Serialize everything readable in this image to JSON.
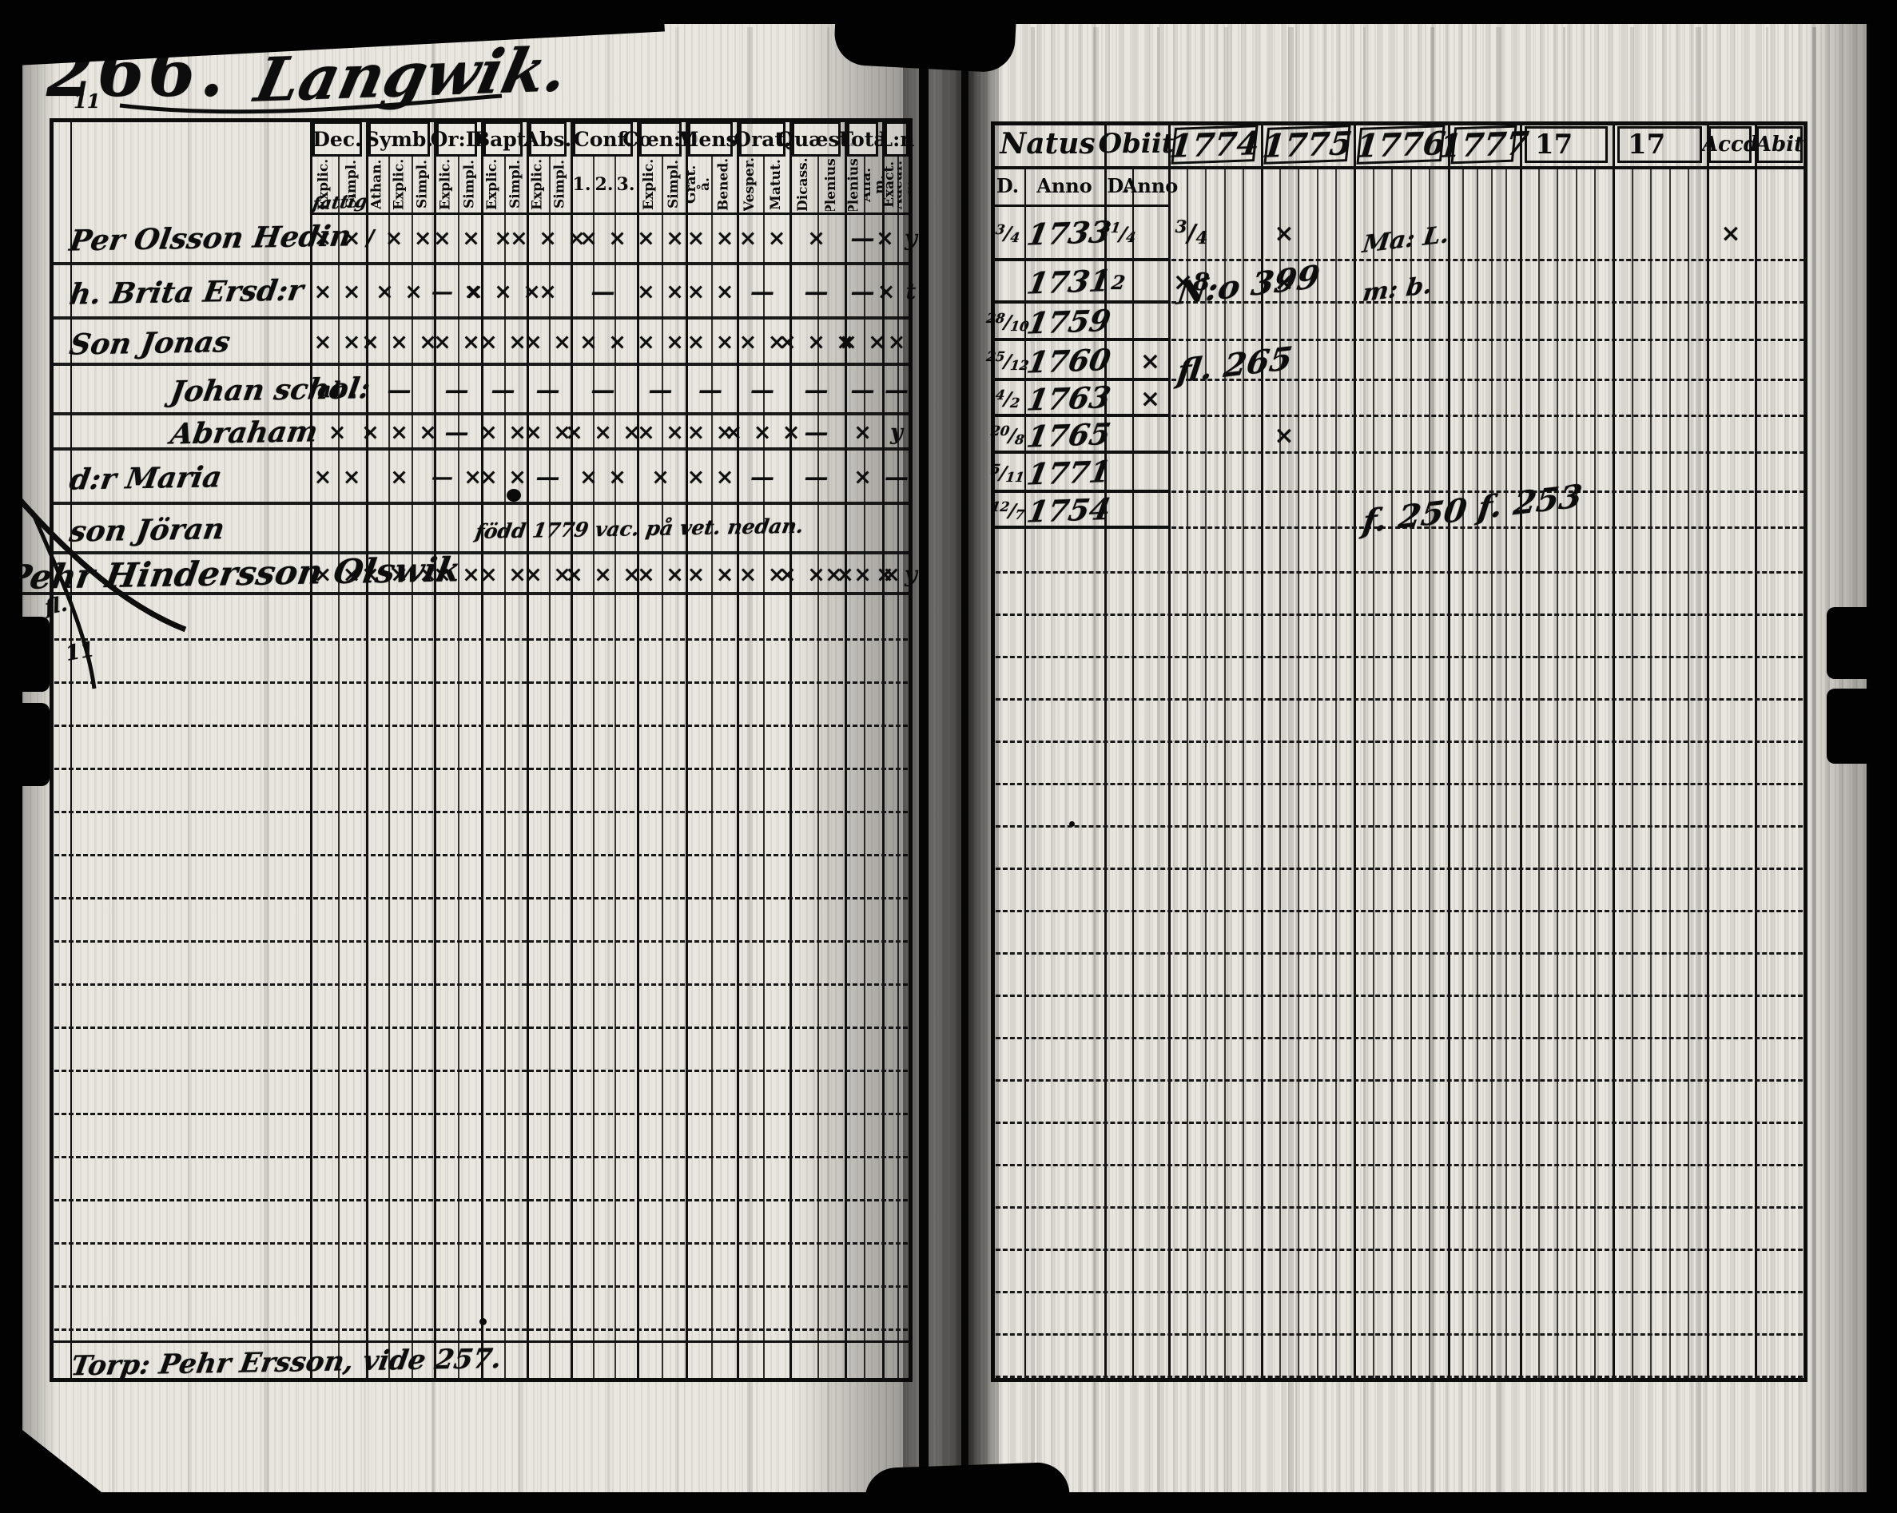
{
  "page_label": {
    "number": "266.",
    "place": "Langwik."
  },
  "left_table": {
    "columns": [
      {
        "label": "Dec.",
        "subs": [
          "Explic.",
          "Simpl."
        ]
      },
      {
        "label": "Symb.",
        "subs": [
          "Athan.",
          "Explic.",
          "Simpl."
        ]
      },
      {
        "label": "Or:D",
        "subs": [
          "Explic.",
          "Simpl."
        ]
      },
      {
        "label": "Bapt.",
        "subs": [
          "Explic.",
          "Simpl."
        ]
      },
      {
        "label": "Abs.",
        "subs": [
          "Explic.",
          "Simpl."
        ]
      },
      {
        "label": "Conf.",
        "subs": [
          "1.",
          "2.",
          "3."
        ]
      },
      {
        "label": "Cœn:D",
        "subs": [
          "Explic.",
          "Simpl."
        ]
      },
      {
        "label": "Mens.",
        "subs": [
          "Grat. å.",
          "Bened."
        ]
      },
      {
        "label": "Orat.",
        "subs": [
          "Vesper.",
          "Matut."
        ]
      },
      {
        "label": "Quæst.",
        "subs": [
          "Dicass.",
          "Plenius."
        ]
      },
      {
        "label": "Tota",
        "subs": [
          "Plenius.",
          "Alia. m."
        ]
      },
      {
        "label": "L:n",
        "subs": [
          "Exact.",
          "Adcur. m."
        ]
      }
    ],
    "rows": [
      {
        "name": "Per Olsson Hedin",
        "annotation": "fattig",
        "indent": false,
        "marks": [
          "× ×",
          "/ × ×",
          "× ×",
          "×",
          "× × ×",
          "× ×",
          "× ×",
          "× ×",
          "× ×",
          "×",
          "—",
          "× y"
        ]
      },
      {
        "name": "h. Brita Ersd:r",
        "indent": false,
        "marks": [
          "× ×",
          "× ×",
          "— ×",
          "× × ×",
          "×",
          "—",
          "× ×",
          "× ×",
          "—",
          "—",
          "—",
          "× t"
        ]
      },
      {
        "name": "Son Jonas",
        "indent": false,
        "marks": [
          "× ×",
          "× × ×",
          "× ×",
          "× ×",
          "× ×",
          "× ×",
          "× ×",
          "× ×",
          "× ×",
          "× × ×",
          "× ×",
          "×"
        ]
      },
      {
        "name": "Johan schol:",
        "indent": true,
        "marks": [
          "ab.",
          "—",
          "—",
          "—",
          "—",
          "—",
          "—",
          "—",
          "—",
          "—",
          "—",
          "—"
        ]
      },
      {
        "name": "Abraham",
        "indent": true,
        "marks": [
          "×",
          "× × ×",
          "—",
          "× ×",
          "× ×",
          "× × ×",
          "× ×",
          "× ×",
          "× × ×",
          "—",
          "×",
          "y"
        ]
      },
      {
        "name": "d:r Maria",
        "indent": false,
        "marks": [
          "× ×",
          "×",
          "— ×",
          "× ×",
          "—",
          "× ×",
          "×",
          "× ×",
          "—",
          "—",
          "×",
          "—"
        ]
      },
      {
        "name": "son Jöran",
        "indent": false,
        "note": "född 1779 vac. på vet. nedan.",
        "marks": []
      },
      {
        "name": "Pehr Hindersson Olswik",
        "indent": false,
        "marks": [
          "× ×",
          "× × ×",
          "× ×",
          "× ×",
          "× ×",
          "× × ×",
          "× ×",
          "× ×",
          "× ×",
          "× × ×",
          "× × ×",
          "× y"
        ]
      }
    ],
    "footer_note": "Torp: Pehr Ersson, vide 257.",
    "marginalia_top": "11",
    "marginalia_mid": [
      "fl.",
      "11"
    ]
  },
  "right_table": {
    "natus_label": "Natus",
    "obiit_label": "Obiit",
    "day_label": "D.",
    "anno_label": "Anno",
    "year_columns": [
      "1774",
      "1775",
      "1776",
      "1777",
      "17",
      "17"
    ],
    "accd_label": "Accd",
    "abit_label": "Abit",
    "rows": [
      {
        "natus_d": "3/4",
        "natus_anno": "1733",
        "obiit_d": "31/4",
        "obiit_anno": "",
        "year_marks": [
          "3/4",
          "×",
          "",
          "",
          "",
          ""
        ],
        "accd": "×",
        "notes": [
          {
            "text": "Ma: L.",
            "col": 2,
            "big": false
          }
        ]
      },
      {
        "natus_d": "",
        "natus_anno": "1731",
        "obiit_d": "2",
        "obiit_anno": "",
        "year_marks": [
          "×8",
          "×",
          "",
          "",
          "",
          ""
        ],
        "accd": "",
        "notes": [
          {
            "text": "N:o 399",
            "col": 0,
            "big": true
          },
          {
            "text": "m: b.",
            "col": 2,
            "big": false
          }
        ]
      },
      {
        "natus_d": "28/10",
        "natus_anno": "1759",
        "obiit_d": "",
        "obiit_anno": "",
        "year_marks": [
          "",
          "",
          "",
          "",
          "",
          ""
        ],
        "accd": "",
        "notes": []
      },
      {
        "natus_d": "25/12",
        "natus_anno": "1760",
        "obiit_d": "",
        "obiit_anno": "×",
        "year_marks": [
          "",
          "",
          "",
          "",
          "",
          ""
        ],
        "accd": "",
        "notes": [
          {
            "text": "fl. 265",
            "col": 0,
            "big": true
          }
        ]
      },
      {
        "natus_d": "4/2",
        "natus_anno": "1763",
        "obiit_d": "",
        "obiit_anno": "×",
        "year_marks": [
          "",
          "",
          "",
          "",
          "",
          ""
        ],
        "accd": "",
        "notes": []
      },
      {
        "natus_d": "20/8",
        "natus_anno": "1765",
        "obiit_d": "",
        "obiit_anno": "",
        "year_marks": [
          "",
          "×",
          "",
          "",
          "",
          ""
        ],
        "accd": "",
        "notes": []
      },
      {
        "natus_d": "5/11",
        "natus_anno": "1771",
        "obiit_d": "",
        "obiit_anno": "",
        "year_marks": [
          "",
          "",
          "",
          "",
          "",
          ""
        ],
        "accd": "",
        "notes": []
      },
      {
        "natus_d": "12/7",
        "natus_anno": "1754",
        "obiit_d": "",
        "obiit_anno": "",
        "year_marks": [
          "",
          "",
          "",
          "",
          "",
          ""
        ],
        "accd": "",
        "notes": [
          {
            "text": "f. 250  f. 253",
            "col": 2,
            "big": true
          }
        ]
      }
    ]
  }
}
